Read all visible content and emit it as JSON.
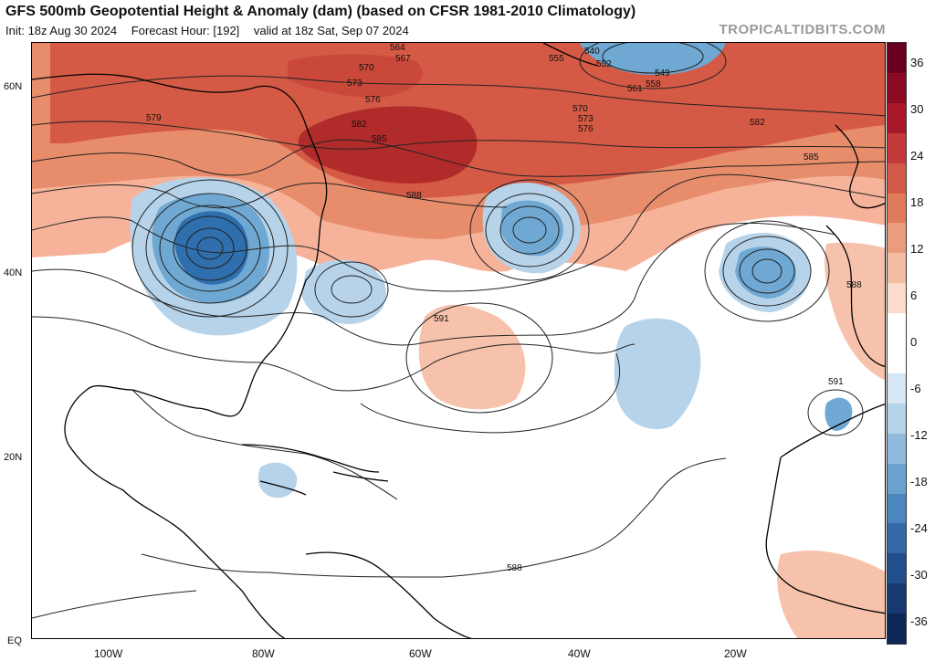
{
  "header": {
    "title": "GFS 500mb Geopotential Height & Anomaly (dam) (based on CFSR 1981-2010 Climatology)",
    "init": "Init: 18z Aug 30 2024",
    "forecast_hour": "Forecast Hour: [192]",
    "valid": "valid at 18z Sat, Sep 07 2024",
    "credit": "TROPICALTIDBITS.COM"
  },
  "map": {
    "lat_labels": [
      "60N",
      "40N",
      "20N",
      "EQ"
    ],
    "lon_labels": [
      "100W",
      "80W",
      "60W",
      "40W",
      "20W"
    ],
    "contour_labels": [
      "564",
      "567",
      "570",
      "573",
      "576",
      "579",
      "582",
      "585",
      "588",
      "591",
      "540",
      "549",
      "552",
      "555",
      "558",
      "561",
      "570",
      "573",
      "576",
      "582",
      "585",
      "588",
      "591",
      "588"
    ],
    "anomaly_colors": {
      "warm_strong": "#b22b2b",
      "warm": "#e06a4c",
      "warm_light": "#f7b39a",
      "cool_light": "#bcd6ea",
      "cool": "#6fa8d2",
      "cool_strong": "#2f6fae"
    }
  },
  "colorbar": {
    "labels": [
      "36",
      "30",
      "24",
      "18",
      "12",
      "6",
      "0",
      "-6",
      "-12",
      "-18",
      "-24",
      "-30",
      "-36"
    ],
    "colors": [
      "#67001f",
      "#8a0a24",
      "#a8182a",
      "#c23a3a",
      "#d25a48",
      "#e07b5c",
      "#eb9c7c",
      "#f4bea2",
      "#fbdccb",
      "#ffffff",
      "#ffffff",
      "#d6e6f2",
      "#b4d2e8",
      "#8fbadd",
      "#6ba2d0",
      "#4b86bf",
      "#3569a7",
      "#234e8c",
      "#173871",
      "#0c2656"
    ]
  }
}
